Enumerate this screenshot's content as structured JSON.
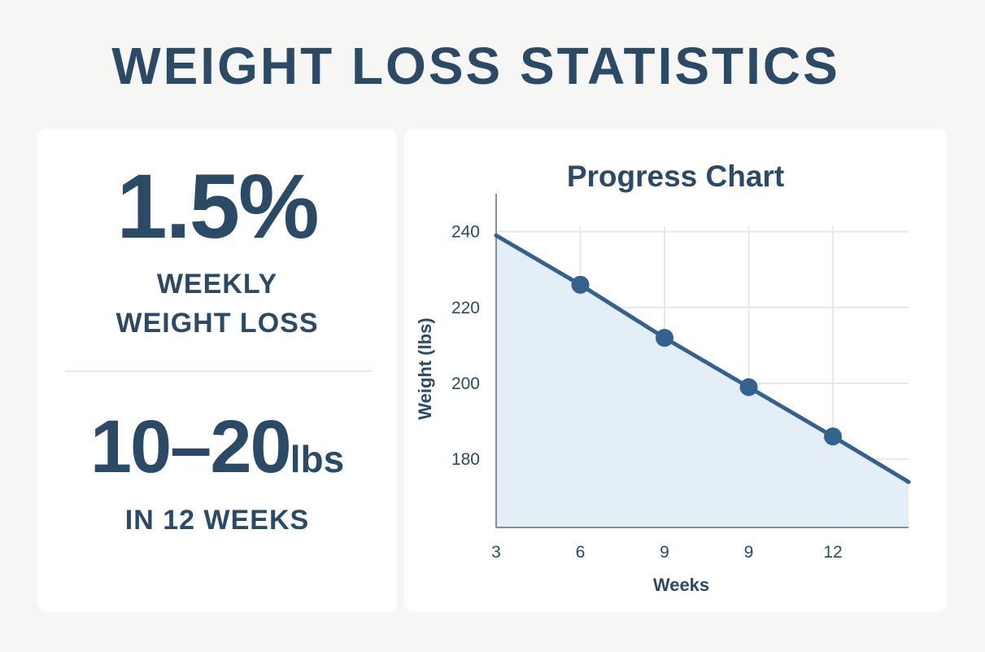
{
  "page": {
    "title": "WEIGHT LOSS STATISTICS"
  },
  "stats": {
    "weekly_value": "1.5%",
    "weekly_label_line1": "WEEKLY",
    "weekly_label_line2": "WEIGHT LOSS",
    "range_value": "10–20",
    "range_unit": "lbs",
    "range_label": "IN 12 WEEKS"
  },
  "colors": {
    "text": "#2b4a66",
    "line": "#34628e",
    "area": "#e4eef7",
    "grid": "#e6e8ea"
  },
  "chart_data": {
    "type": "area",
    "title": "Progress Chart",
    "xlabel": "Weeks",
    "ylabel": "Weight (lbs)",
    "x_tick_labels": [
      "3",
      "6",
      "9",
      "9",
      "12"
    ],
    "y_ticks": [
      240,
      220,
      200,
      180
    ],
    "ylim": [
      162,
      250
    ],
    "grid": true,
    "series": [
      {
        "points": [
          {
            "x": 0,
            "y": 239
          },
          {
            "x": 1,
            "y": 226
          },
          {
            "x": 2,
            "y": 212
          },
          {
            "x": 3,
            "y": 199
          },
          {
            "x": 4,
            "y": 186
          },
          {
            "x": 4.9,
            "y": 174
          }
        ],
        "markers": [
          1,
          2,
          3,
          4
        ]
      }
    ]
  }
}
